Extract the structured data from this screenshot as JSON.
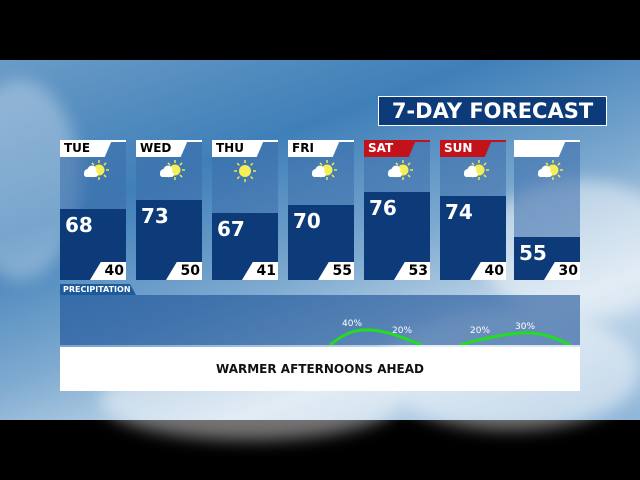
{
  "title": "7-DAY FORECAST",
  "days": [
    {
      "label": "TUE",
      "high": "68",
      "low": "40",
      "weekend": false,
      "icon": "partly-sunny-icon"
    },
    {
      "label": "WED",
      "high": "73",
      "low": "50",
      "weekend": false,
      "icon": "partly-sunny-icon"
    },
    {
      "label": "THU",
      "high": "67",
      "low": "41",
      "weekend": false,
      "icon": "sunny-icon"
    },
    {
      "label": "FRI",
      "high": "70",
      "low": "55",
      "weekend": false,
      "icon": "partly-sunny-icon"
    },
    {
      "label": "SAT",
      "high": "76",
      "low": "53",
      "weekend": true,
      "icon": "partly-sunny-icon"
    },
    {
      "label": "SUN",
      "high": "74",
      "low": "40",
      "weekend": true,
      "icon": "partly-sunny-icon"
    },
    {
      "label": "",
      "high": "55",
      "low": "30",
      "weekend": false,
      "icon": "partly-sunny-icon"
    }
  ],
  "precipitation": {
    "label": "PRECIPITATION",
    "labels": [
      "40%",
      "20%",
      "20%",
      "30%"
    ],
    "line_color": "#22dd22"
  },
  "banner": "WARMER AFTERNOONS AHEAD",
  "colors": {
    "panel": "#0d3a78",
    "weekend": "#c4121a"
  }
}
